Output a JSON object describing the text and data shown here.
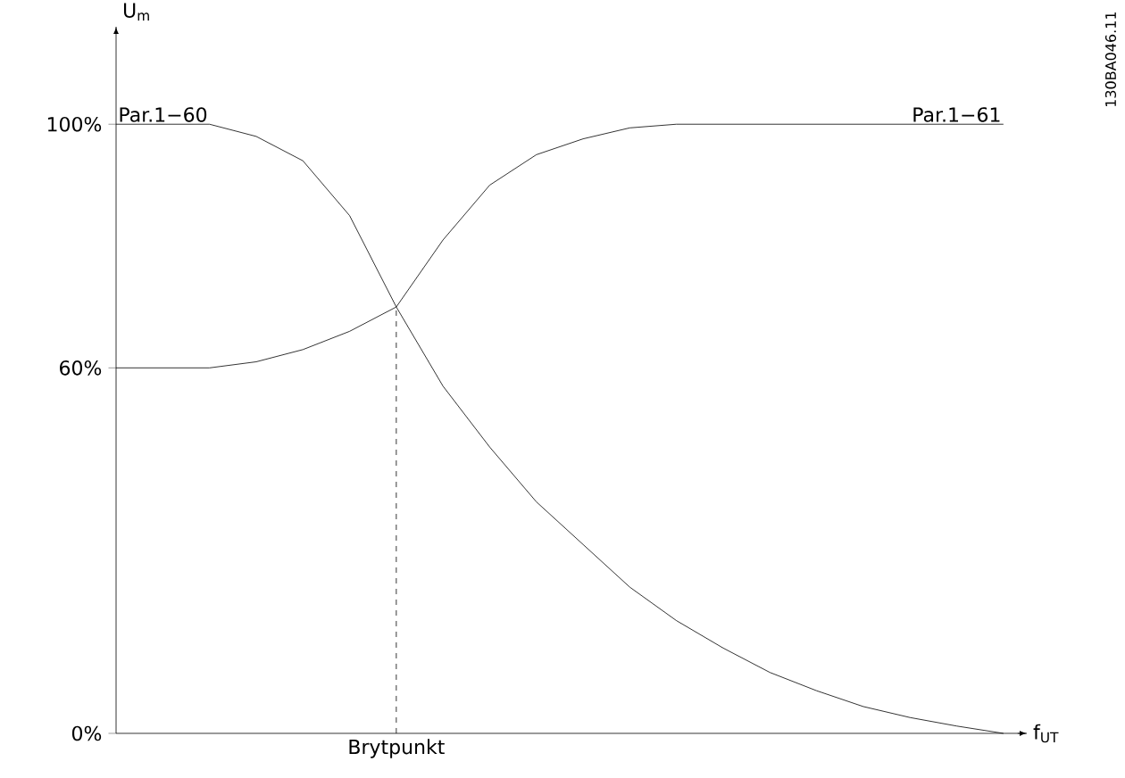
{
  "chart_data": {
    "type": "line",
    "xlabel": "f$_{UT}$",
    "ylabel": "U$_{m}$",
    "categories": [
      null,
      null,
      null,
      null,
      null,
      null,
      null,
      null,
      null,
      null,
      null,
      null,
      null,
      null,
      null,
      null,
      null,
      null,
      null,
      null
    ],
    "series": [
      {
        "color": "#000000",
        "values": [
          100,
          100,
          100,
          98,
          94,
          85,
          70,
          57,
          47,
          38,
          31,
          24,
          18.5,
          14,
          10,
          7,
          4.4,
          2.6,
          1.2,
          0
        ]
      },
      {
        "color": "#000000",
        "values": [
          60,
          60,
          60,
          61,
          63,
          66,
          70,
          81,
          90,
          95,
          97.6,
          99.4,
          100,
          100,
          100,
          100,
          100,
          100,
          100,
          100
        ]
      }
    ],
    "ylim": [
      0,
      116
    ],
    "yticks": [
      {
        "value": 0,
        "label": "0%"
      },
      {
        "value": 60,
        "label": "60%"
      },
      {
        "value": 100,
        "label": "100%"
      }
    ],
    "annotations": [
      "Par.1−60",
      "Par.1−61",
      "130BA046.11",
      "Brytpunkt"
    ],
    "tick_labels": "y",
    "marker": "none",
    "line_style": "solid",
    "grid": false
  }
}
